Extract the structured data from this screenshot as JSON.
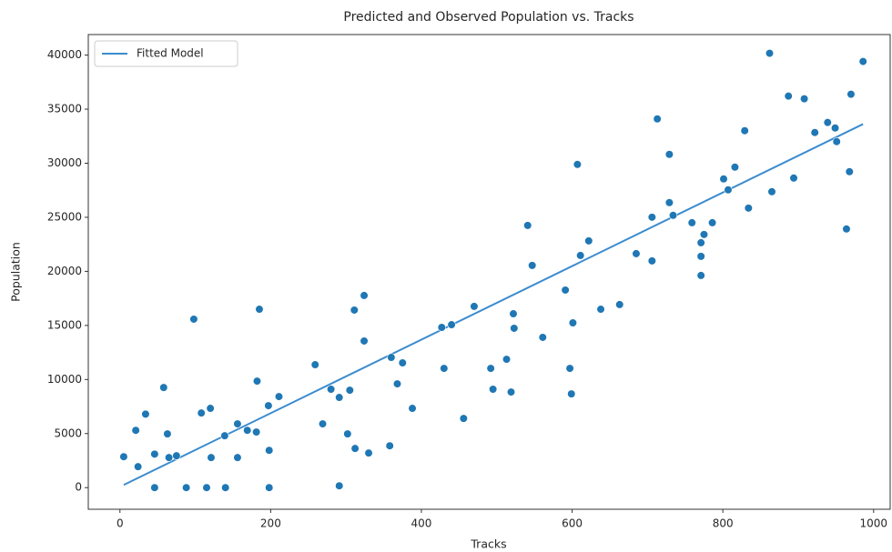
{
  "chart_data": {
    "type": "scatter",
    "title": "Predicted and Observed Population vs. Tracks",
    "x_label": "Tracks",
    "y_label": "Population",
    "xlim": [
      -42,
      1022
    ],
    "ylim": [
      -2000,
      41900
    ],
    "xticks": [
      0,
      200,
      400,
      600,
      800,
      1000
    ],
    "yticks": [
      0,
      5000,
      10000,
      15000,
      20000,
      25000,
      30000,
      35000,
      40000
    ],
    "grid": false,
    "legend": "upper left",
    "series": [
      {
        "name": "Fitted Model",
        "type": "line",
        "color": "#3b8ccf",
        "x": [
          5,
          986
        ],
        "values": [
          250,
          33620
        ]
      },
      {
        "type": "scatter",
        "color": "#1f77b4",
        "x": [
          5,
          21,
          24,
          34,
          46,
          46,
          58,
          63,
          65,
          75,
          88,
          98,
          108,
          115,
          120,
          121,
          140,
          139,
          156,
          156,
          169,
          181,
          182,
          185,
          197,
          198,
          198,
          211,
          259,
          269,
          280,
          291,
          291,
          302,
          305,
          311,
          312,
          324,
          324,
          330,
          358,
          360,
          368,
          375,
          388,
          427,
          430,
          440,
          456,
          470,
          492,
          495,
          513,
          519,
          522,
          523,
          541,
          547,
          561,
          591,
          597,
          599,
          601,
          607,
          611,
          622,
          638,
          663,
          685,
          706,
          706,
          713,
          729,
          729,
          734,
          759,
          771,
          771,
          771,
          775,
          786,
          801,
          807,
          816,
          829,
          834,
          862,
          865,
          887,
          894,
          908,
          922,
          939,
          949,
          951,
          964,
          968,
          970,
          986
        ],
        "values": [
          2860,
          5300,
          1940,
          6800,
          3100,
          0,
          9260,
          4970,
          2780,
          2950,
          0,
          15580,
          6900,
          0,
          7330,
          2780,
          0,
          4800,
          5900,
          2780,
          5300,
          5140,
          9850,
          16500,
          7580,
          3450,
          0,
          8420,
          11370,
          5900,
          9100,
          170,
          8340,
          4970,
          9010,
          16420,
          3620,
          17770,
          13560,
          3200,
          3870,
          12040,
          9600,
          11540,
          7330,
          14820,
          11030,
          15070,
          6400,
          16760,
          11030,
          9100,
          11870,
          8840,
          16080,
          14740,
          24250,
          20550,
          13900,
          18270,
          11030,
          8670,
          15240,
          29890,
          21470,
          22820,
          16500,
          16930,
          21640,
          25010,
          20970,
          34100,
          30820,
          26360,
          25180,
          24500,
          22650,
          21390,
          19620,
          23410,
          24500,
          28550,
          27540,
          29640,
          33010,
          25850,
          40170,
          27370,
          36210,
          28630,
          35960,
          32840,
          33770,
          33260,
          32000,
          23920,
          29220,
          36380,
          39410
        ]
      }
    ]
  }
}
